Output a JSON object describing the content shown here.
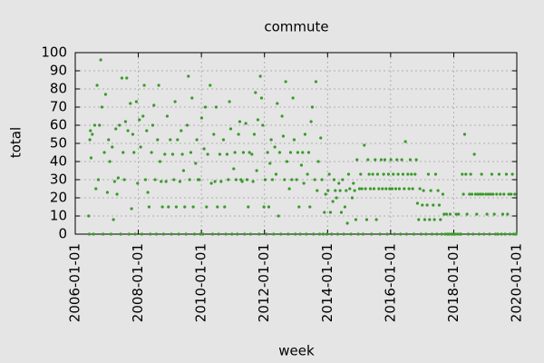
{
  "chart_data": {
    "type": "scatter",
    "title": "commute",
    "x_label": "week",
    "y_label": "total",
    "color": "#3a9a2a",
    "grid": true,
    "xlim": [
      "2006-01-01",
      "2020-01-01"
    ],
    "xticks": [
      "2006-01-01",
      "2008-01-01",
      "2010-01-01",
      "2012-01-01",
      "2014-01-01",
      "2016-01-01",
      "2018-01-01",
      "2020-01-01"
    ],
    "ylim": [
      0,
      100
    ],
    "yticks": [
      0,
      10,
      20,
      30,
      40,
      50,
      60,
      70,
      80,
      90,
      100
    ],
    "x": [
      "2006-06-05",
      "2006-06-12",
      "2006-06-19",
      "2006-06-26",
      "2006-07-03",
      "2006-07-17",
      "2006-07-31",
      "2006-08-14",
      "2006-08-28",
      "2006-09-11",
      "2006-09-25",
      "2006-10-09",
      "2006-10-23",
      "2006-11-06",
      "2006-11-20",
      "2006-12-04",
      "2006-12-18",
      "2007-01-08",
      "2007-01-22",
      "2007-02-05",
      "2007-02-19",
      "2007-03-05",
      "2007-03-19",
      "2007-04-02",
      "2007-04-16",
      "2007-04-30",
      "2007-05-14",
      "2007-05-28",
      "2007-06-11",
      "2007-06-25",
      "2007-07-09",
      "2007-07-23",
      "2007-08-06",
      "2007-08-20",
      "2007-09-03",
      "2007-09-17",
      "2007-10-01",
      "2007-10-15",
      "2007-10-29",
      "2007-11-12",
      "2007-11-26",
      "2007-12-10",
      "2007-12-24",
      "2008-01-14",
      "2008-01-28",
      "2008-02-11",
      "2008-02-25",
      "2008-03-10",
      "2008-03-24",
      "2008-04-07",
      "2008-04-21",
      "2008-05-05",
      "2008-05-19",
      "2008-06-02",
      "2008-06-16",
      "2008-06-30",
      "2008-07-14",
      "2008-07-28",
      "2008-08-11",
      "2008-08-25",
      "2008-09-08",
      "2008-09-22",
      "2008-10-06",
      "2008-10-20",
      "2008-11-03",
      "2008-11-17",
      "2008-12-01",
      "2008-12-15",
      "2009-01-05",
      "2009-01-19",
      "2009-02-02",
      "2009-02-16",
      "2009-03-02",
      "2009-03-16",
      "2009-03-30",
      "2009-04-13",
      "2009-04-27",
      "2009-05-11",
      "2009-05-25",
      "2009-06-08",
      "2009-06-22",
      "2009-07-06",
      "2009-07-20",
      "2009-08-03",
      "2009-08-17",
      "2009-08-31",
      "2009-09-14",
      "2009-09-28",
      "2009-10-12",
      "2009-10-26",
      "2009-11-09",
      "2009-11-23",
      "2009-12-07",
      "2009-12-21",
      "2010-01-04",
      "2010-01-18",
      "2010-02-01",
      "2010-02-15",
      "2010-03-01",
      "2010-03-15",
      "2010-04-12",
      "2010-04-26",
      "2010-05-10",
      "2010-05-24",
      "2010-06-07",
      "2010-06-21",
      "2010-07-05",
      "2010-07-19",
      "2010-08-02",
      "2010-08-16",
      "2010-09-13",
      "2010-09-27",
      "2010-10-11",
      "2010-10-25",
      "2010-11-08",
      "2010-11-22",
      "2010-12-06",
      "2010-12-20",
      "2011-01-10",
      "2011-01-24",
      "2011-02-07",
      "2011-02-21",
      "2011-03-07",
      "2011-03-21",
      "2011-04-04",
      "2011-04-18",
      "2011-05-02",
      "2011-05-16",
      "2011-05-30",
      "2011-06-13",
      "2011-06-27",
      "2011-07-11",
      "2011-07-25",
      "2011-08-08",
      "2011-08-22",
      "2011-09-05",
      "2011-09-19",
      "2011-10-03",
      "2011-10-17",
      "2011-10-31",
      "2011-11-14",
      "2011-11-28",
      "2011-12-12",
      "2011-12-26",
      "2012-01-09",
      "2012-01-23",
      "2012-02-06",
      "2012-02-20",
      "2012-03-05",
      "2012-03-19",
      "2012-04-02",
      "2012-04-16",
      "2012-04-30",
      "2012-05-14",
      "2012-05-28",
      "2012-06-11",
      "2012-06-25",
      "2012-07-09",
      "2012-07-23",
      "2012-08-06",
      "2012-08-20",
      "2012-09-03",
      "2012-09-17",
      "2012-10-01",
      "2012-10-15",
      "2012-10-29",
      "2012-11-12",
      "2012-11-26",
      "2012-12-10",
      "2012-12-24",
      "2013-01-07",
      "2013-01-21",
      "2013-02-04",
      "2013-02-18",
      "2013-03-04",
      "2013-03-18",
      "2013-04-01",
      "2013-04-15",
      "2013-04-29",
      "2013-05-13",
      "2013-05-27",
      "2013-06-10",
      "2013-06-24",
      "2013-07-08",
      "2013-07-22",
      "2013-08-05",
      "2013-08-19",
      "2013-09-02",
      "2013-09-16",
      "2013-09-30",
      "2013-10-14",
      "2013-10-28",
      "2013-11-11",
      "2013-11-25",
      "2013-12-09",
      "2013-12-23",
      "2014-01-06",
      "2014-01-20",
      "2014-02-03",
      "2014-02-17",
      "2014-03-03",
      "2014-03-17",
      "2014-03-31",
      "2014-04-14",
      "2014-04-28",
      "2014-05-12",
      "2014-05-26",
      "2014-06-09",
      "2014-06-23",
      "2014-07-07",
      "2014-07-21",
      "2014-08-04",
      "2014-08-18",
      "2014-09-01",
      "2014-09-15",
      "2014-09-29",
      "2014-10-13",
      "2014-10-27",
      "2014-11-10",
      "2014-11-24",
      "2014-12-08",
      "2014-12-22",
      "2015-01-05",
      "2015-01-19",
      "2015-02-02",
      "2015-02-16",
      "2015-03-02",
      "2015-03-16",
      "2015-03-30",
      "2015-04-13",
      "2015-04-27",
      "2015-05-11",
      "2015-05-25",
      "2015-06-08",
      "2015-06-22",
      "2015-07-06",
      "2015-07-20",
      "2015-08-03",
      "2015-08-17",
      "2015-08-31",
      "2015-09-14",
      "2015-09-28",
      "2015-10-12",
      "2015-10-26",
      "2015-11-09",
      "2015-11-23",
      "2015-12-07",
      "2015-12-21",
      "2016-01-04",
      "2016-01-18",
      "2016-02-01",
      "2016-02-15",
      "2016-02-29",
      "2016-03-14",
      "2016-03-28",
      "2016-04-11",
      "2016-04-25",
      "2016-05-09",
      "2016-05-23",
      "2016-06-06",
      "2016-06-20",
      "2016-07-04",
      "2016-07-18",
      "2016-08-01",
      "2016-08-15",
      "2016-08-29",
      "2016-09-12",
      "2016-09-26",
      "2016-10-10",
      "2016-10-24",
      "2016-11-07",
      "2016-11-21",
      "2016-12-05",
      "2016-12-19",
      "2017-01-02",
      "2017-01-16",
      "2017-01-30",
      "2017-02-13",
      "2017-02-27",
      "2017-03-13",
      "2017-03-27",
      "2017-04-10",
      "2017-04-24",
      "2017-05-08",
      "2017-05-22",
      "2017-06-05",
      "2017-06-19",
      "2017-07-03",
      "2017-07-17",
      "2017-07-31",
      "2017-08-14",
      "2017-08-28",
      "2017-09-11",
      "2017-09-25",
      "2017-10-09",
      "2017-10-23",
      "2017-11-06",
      "2017-11-20",
      "2017-12-04",
      "2017-12-18",
      "2018-01-01",
      "2018-01-15",
      "2018-01-29",
      "2018-02-12",
      "2018-02-26",
      "2018-03-12",
      "2018-03-26",
      "2018-04-09",
      "2018-04-23",
      "2018-05-07",
      "2018-05-21",
      "2018-06-04",
      "2018-06-18",
      "2018-07-02",
      "2018-07-16",
      "2018-07-30",
      "2018-08-13",
      "2018-08-27",
      "2018-09-10",
      "2018-09-24",
      "2018-10-08",
      "2018-10-22",
      "2018-11-05",
      "2018-11-19",
      "2018-12-03",
      "2018-12-17",
      "2019-01-07",
      "2019-01-21",
      "2019-02-04",
      "2019-02-18",
      "2019-03-04",
      "2019-03-18",
      "2019-04-01",
      "2019-04-15",
      "2019-04-29",
      "2019-05-13",
      "2019-05-27",
      "2019-06-10",
      "2019-06-24",
      "2019-07-08",
      "2019-07-22",
      "2019-08-05",
      "2019-08-19",
      "2019-09-02",
      "2019-09-16",
      "2019-09-30",
      "2019-10-14",
      "2019-10-28",
      "2019-11-11",
      "2019-11-25",
      "2019-12-09",
      "2019-12-23"
    ],
    "values": [
      10,
      0,
      52,
      57,
      42,
      55,
      0,
      60,
      25,
      82,
      30,
      60,
      96,
      70,
      0,
      45,
      77,
      23,
      52,
      40,
      0,
      48,
      8,
      29,
      58,
      22,
      31,
      60,
      0,
      86,
      45,
      30,
      62,
      86,
      57,
      0,
      72,
      14,
      55,
      45,
      0,
      73,
      28,
      63,
      48,
      0,
      65,
      82,
      30,
      57,
      23,
      15,
      0,
      45,
      60,
      71,
      30,
      0,
      52,
      82,
      40,
      29,
      15,
      0,
      44,
      29,
      65,
      15,
      52,
      0,
      44,
      30,
      73,
      15,
      52,
      0,
      29,
      57,
      44,
      35,
      15,
      0,
      60,
      87,
      30,
      45,
      75,
      15,
      0,
      39,
      52,
      30,
      30,
      0,
      64,
      0,
      47,
      70,
      15,
      44,
      82,
      28,
      0,
      55,
      29,
      70,
      15,
      0,
      44,
      29,
      52,
      15,
      0,
      44,
      30,
      73,
      58,
      0,
      36,
      45,
      30,
      0,
      55,
      62,
      30,
      29,
      45,
      0,
      61,
      30,
      15,
      45,
      0,
      44,
      29,
      55,
      78,
      35,
      63,
      0,
      87,
      75,
      60,
      15,
      30,
      0,
      45,
      15,
      39,
      52,
      30,
      0,
      48,
      33,
      72,
      10,
      45,
      0,
      65,
      54,
      30,
      84,
      40,
      0,
      25,
      45,
      30,
      75,
      52,
      0,
      30,
      45,
      15,
      0,
      38,
      45,
      28,
      55,
      0,
      33,
      45,
      15,
      62,
      70,
      0,
      30,
      84,
      24,
      40,
      0,
      53,
      30,
      0,
      12,
      22,
      0,
      24,
      33,
      12,
      0,
      18,
      30,
      24,
      20,
      0,
      28,
      24,
      12,
      30,
      0,
      15,
      24,
      6,
      33,
      25,
      0,
      20,
      28,
      24,
      8,
      41,
      0,
      25,
      33,
      25,
      0,
      49,
      25,
      8,
      41,
      33,
      25,
      0,
      33,
      25,
      41,
      8,
      33,
      25,
      0,
      41,
      25,
      33,
      41,
      25,
      0,
      33,
      25,
      41,
      25,
      33,
      0,
      25,
      41,
      33,
      25,
      0,
      41,
      33,
      25,
      51,
      0,
      33,
      25,
      41,
      33,
      25,
      0,
      33,
      41,
      17,
      8,
      25,
      0,
      16,
      24,
      8,
      0,
      16,
      33,
      8,
      24,
      0,
      16,
      8,
      33,
      0,
      24,
      16,
      8,
      0,
      22,
      11,
      0,
      11,
      0,
      0,
      11,
      0,
      0,
      0,
      0,
      11,
      0,
      11,
      0,
      0,
      33,
      22,
      55,
      33,
      11,
      0,
      22,
      33,
      22,
      0,
      44,
      22,
      11,
      22,
      0,
      22,
      33,
      22,
      0,
      22,
      11,
      22,
      0,
      22,
      33,
      22,
      11,
      0,
      22,
      0,
      33,
      22,
      0,
      11,
      22,
      0,
      33,
      11,
      22,
      0,
      22,
      33,
      0,
      22,
      0
    ]
  }
}
